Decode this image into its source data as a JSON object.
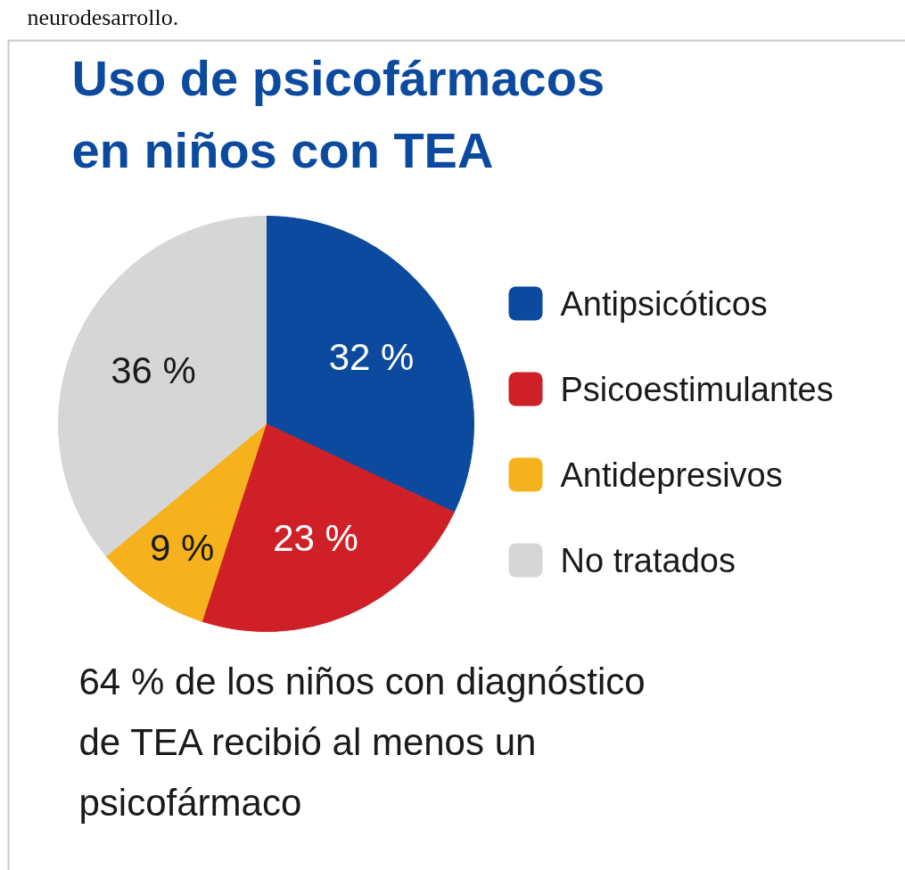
{
  "chart_data": {
    "type": "pie",
    "title": "Uso de psicofármacos\nen niños con TEA",
    "categories": [
      "Antipsicóticos",
      "Psicoestimulantes",
      "Antidepresivos",
      "No tratados"
    ],
    "values": [
      32,
      23,
      9,
      36
    ],
    "colors": [
      "#0b4a9e",
      "#d02027",
      "#f5b21c",
      "#d6d6d6"
    ],
    "value_labels": [
      "32 %",
      "23 %",
      "9 %",
      "36 %"
    ],
    "legend": "right",
    "annotations": [
      "neurodesarrollo.",
      "64 % de los niños con diagnóstico\nde TEA recibió al menos un\npsicofármaco"
    ]
  }
}
